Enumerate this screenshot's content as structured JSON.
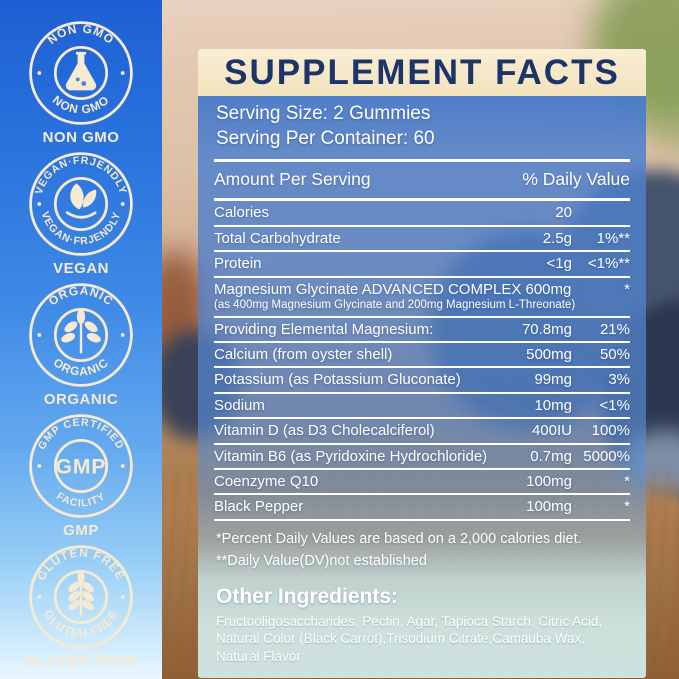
{
  "badges": [
    {
      "icon": "flask-icon",
      "arc_top": "NON GMO",
      "arc_bottom": "NON GMO",
      "label": "NON GMO"
    },
    {
      "icon": "leaves-icon",
      "arc_top": "VEGAN·FRJENDLY",
      "arc_bottom": "VEGAN·FRJENDLY",
      "label": "VEGAN"
    },
    {
      "icon": "plant-icon",
      "arc_top": "ORGANIC",
      "arc_bottom": "ORGANIC",
      "label": "ORGANIC"
    },
    {
      "icon": "gmp-text",
      "center_text": "GMP",
      "arc_top": "GMP CERTIFIED",
      "arc_bottom": "FACILITY",
      "label": "GMP"
    },
    {
      "icon": "wheat-icon",
      "arc_top": "GLUTEN FREE",
      "arc_bottom": "GLUTEN FREE",
      "label": "GLUTEN FREE"
    }
  ],
  "panel": {
    "title": "SUPPLEMENT FACTS",
    "serving": {
      "size": "Serving Size: 2 Gummies",
      "per_container": "Serving Per Container: 60"
    },
    "table": {
      "header": {
        "left": "Amount Per Serving",
        "right": "% Daily Value"
      },
      "rows": [
        {
          "label": "Calories",
          "amount": "20",
          "dv": ""
        },
        {
          "label": "Total Carbohydrate",
          "amount": "2.5g",
          "dv": "1%**"
        },
        {
          "label": "Protein",
          "amount": "<1g",
          "dv": "<1%**"
        },
        {
          "label": "Magnesium Glycinate ADVANCED COMPLEX 600mg",
          "sub": "(as 400mg Magnesium Glycinate and 200mg Magnesium L-Threonate)",
          "amount": "",
          "dv": "*"
        },
        {
          "label": "Providing Elemental Magnesium:",
          "amount": "70.8mg",
          "dv": "21%"
        },
        {
          "label": "Calcium (from oyster shell)",
          "amount": "500mg",
          "dv": "50%"
        },
        {
          "label": "Potassium (as Potassium Gluconate)",
          "amount": "99mg",
          "dv": "3%"
        },
        {
          "label": "Sodium",
          "amount": "10mg",
          "dv": "<1%"
        },
        {
          "label": "Vitamin D (as D3 Cholecalciferol)",
          "amount": "400IU",
          "dv": "100%"
        },
        {
          "label": "Vitamin B6 (as Pyridoxine Hydrochloride)",
          "amount": "0.7mg",
          "dv": "5000%"
        },
        {
          "label": "Coenzyme Q10",
          "amount": "100mg",
          "dv": "*"
        },
        {
          "label": "Black Pepper",
          "amount": "100mg",
          "dv": "*"
        }
      ]
    },
    "footnotes": [
      "*Percent Daily Values are based on a 2,000 calories diet.",
      "**Daily Value(DV)not established"
    ],
    "other_ingredients": {
      "heading": "Other Ingredients:",
      "lines": [
        "Fructooligosaccharides, Pectin, Agar, Tapioca Starch, Citric Acid,",
        "Natural Color (Black Carrot),Trisodium Citrate,Camauba Wax, Natural Flavor"
      ]
    }
  },
  "colors": {
    "title_navy": "#1c3468",
    "title_bg_cream": "#f6e6c4",
    "panel_blue": "#4d7fd0",
    "badge_cream": "#f6ead2",
    "strip_blue_top": "#1d5fd3",
    "strip_blue_bottom": "#eaf7fe",
    "ingredients_bg": "#cfe5e4"
  }
}
